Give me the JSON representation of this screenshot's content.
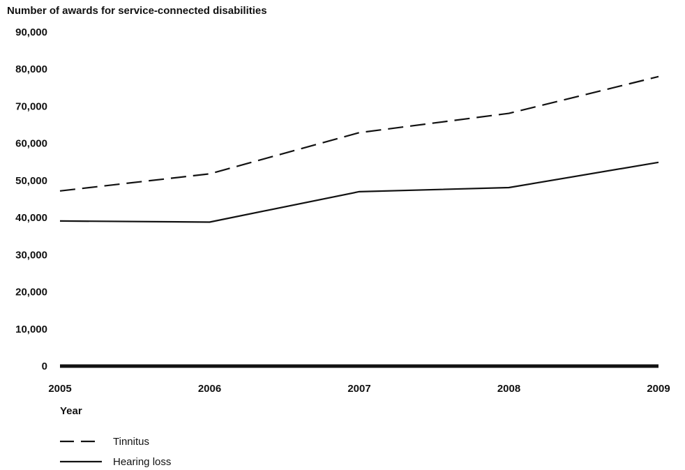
{
  "chart_data": {
    "type": "line",
    "title": "",
    "ylabel": "Number of awards for service-connected disabilities",
    "xlabel": "Year",
    "x": [
      "2005",
      "2006",
      "2007",
      "2008",
      "2009"
    ],
    "ylim": [
      0,
      90000
    ],
    "yticks": [
      0,
      10000,
      20000,
      30000,
      40000,
      50000,
      60000,
      70000,
      80000,
      90000
    ],
    "ytick_labels": [
      "0",
      "10,000",
      "20,000",
      "30,000",
      "40,000",
      "50,000",
      "60,000",
      "70,000",
      "80,000",
      "90,000"
    ],
    "grid": false,
    "legend_position": "bottom-left",
    "series": [
      {
        "name": "Tinnitus",
        "style": "dashed",
        "color": "#111111",
        "values": [
          47200,
          51800,
          62900,
          68100,
          78000
        ]
      },
      {
        "name": "Hearing loss",
        "style": "solid",
        "color": "#111111",
        "values": [
          39100,
          38800,
          47000,
          48100,
          54900
        ]
      }
    ]
  }
}
